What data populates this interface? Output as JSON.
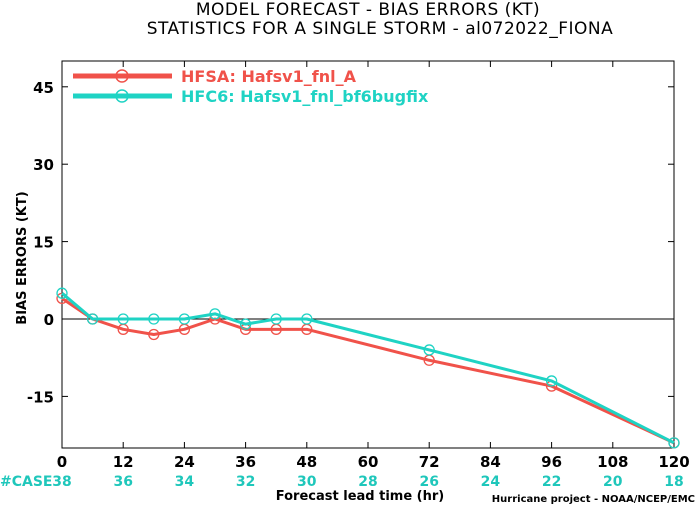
{
  "title_line1": "MODEL FORECAST - BIAS ERRORS (KT)",
  "title_line2": "STATISTICS FOR A SINGLE STORM - al072022_FIONA",
  "credit": "Hurricane project - NOAA/NCEP/EMC",
  "case_header": "#CASE",
  "colors": {
    "HFSA": "#f0524a",
    "HFC6": "#1fd3c4",
    "case": "#1fc7bb"
  },
  "chart_data": {
    "type": "line",
    "ylabel": "BIAS ERRORS (KT)",
    "xlabel": "Forecast lead time (hr)",
    "xlim": [
      0,
      120
    ],
    "ylim": [
      -25,
      50
    ],
    "xticks": [
      0,
      12,
      24,
      36,
      48,
      60,
      72,
      84,
      96,
      108,
      120
    ],
    "yticks": [
      -15,
      0,
      15,
      30,
      45
    ],
    "legend_position": "top-left",
    "series": [
      {
        "name": "HFSA: Hafsv1_fnl_A",
        "color": "#f0524a",
        "x": [
          0,
          6,
          12,
          18,
          24,
          30,
          36,
          42,
          48,
          72,
          96,
          120
        ],
        "y": [
          4,
          0,
          -2,
          -3,
          -2,
          0,
          -2,
          -2,
          -2,
          -8,
          -13,
          -24
        ]
      },
      {
        "name": "HFC6: Hafsv1_fnl_bf6bugfix",
        "color": "#1fd3c4",
        "x": [
          0,
          6,
          12,
          18,
          24,
          30,
          36,
          42,
          48,
          72,
          96,
          120
        ],
        "y": [
          5,
          0,
          0,
          0,
          0,
          1,
          -1,
          0,
          0,
          -6,
          -12,
          -24
        ]
      }
    ],
    "cases": {
      "x": [
        0,
        12,
        24,
        36,
        48,
        60,
        72,
        84,
        96,
        108,
        120
      ],
      "values": [
        "38",
        "36",
        "34",
        "32",
        "30",
        "28",
        "26",
        "24",
        "22",
        "20",
        "18"
      ]
    }
  }
}
